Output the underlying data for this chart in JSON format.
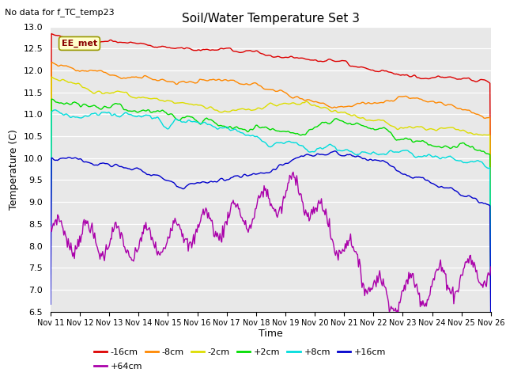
{
  "title": "Soil/Water Temperature Set 3",
  "subtitle": "No data for f_TC_temp23",
  "xlabel": "Time",
  "ylabel": "Temperature (C)",
  "ylim": [
    6.5,
    13.0
  ],
  "x_tick_labels": [
    "Nov 11",
    "Nov 12",
    "Nov 13",
    "Nov 14",
    "Nov 15",
    "Nov 16",
    "Nov 17",
    "Nov 18",
    "Nov 19",
    "Nov 20",
    "Nov 21",
    "Nov 22",
    "Nov 23",
    "Nov 24",
    "Nov 25",
    "Nov 26"
  ],
  "colors": {
    "-16cm": "#dd0000",
    "-8cm": "#ff8800",
    "-2cm": "#dddd00",
    "+2cm": "#00dd00",
    "+8cm": "#00dddd",
    "+16cm": "#0000cc",
    "+64cm": "#aa00aa"
  },
  "legend_label": "EE_met",
  "plot_background": "#e8e8e8",
  "n_points": 500
}
